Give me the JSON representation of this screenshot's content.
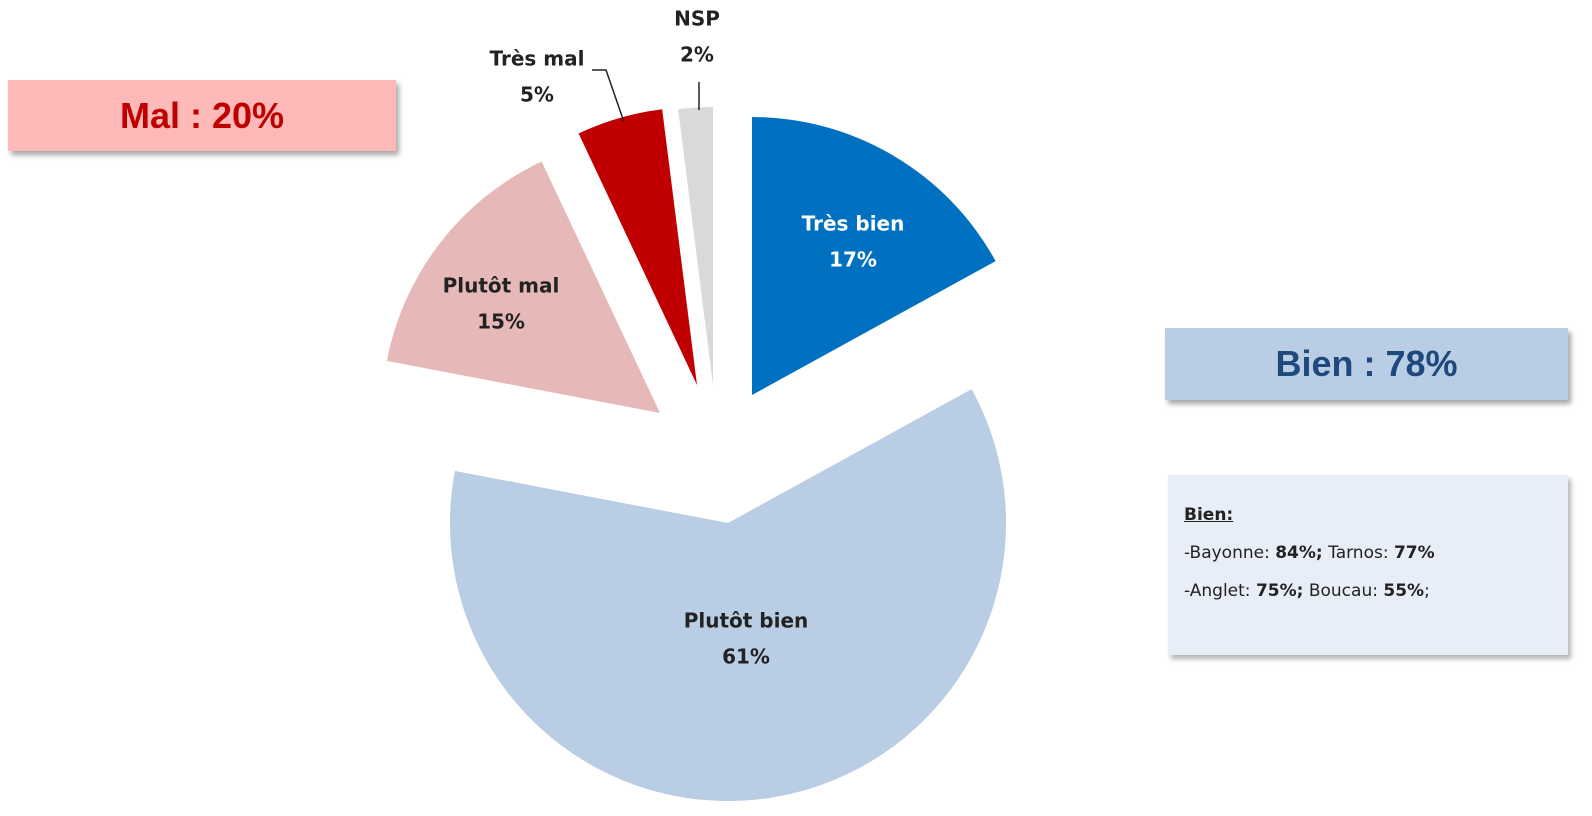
{
  "chart_data": {
    "type": "pie",
    "categories": [
      "Très bien",
      "Plutôt bien",
      "Plutôt mal",
      "Très mal",
      "NSP"
    ],
    "values": [
      17,
      61,
      15,
      5,
      2
    ],
    "value_labels": [
      "17%",
      "61%",
      "15%",
      "5%",
      "2%"
    ],
    "colors": [
      "#0070c0",
      "#b9cde5",
      "#e6b9b8",
      "#c00000",
      "#d9d9d9"
    ],
    "annotations": [
      "Mal : 20%",
      "Bien : 78%"
    ]
  },
  "details": {
    "title": "Bien:",
    "rows": [
      [
        {
          "text": "-Bayonne: "
        },
        {
          "text": "84%;",
          "bold": true
        },
        {
          "text": " Tarnos: "
        },
        {
          "text": "77%",
          "bold": true
        }
      ],
      [
        {
          "text": "-Anglet: "
        },
        {
          "text": "75%;",
          "bold": true
        },
        {
          "text": " Boucau: "
        },
        {
          "text": "55%",
          "bold": true
        },
        {
          "text": ";"
        }
      ]
    ]
  }
}
